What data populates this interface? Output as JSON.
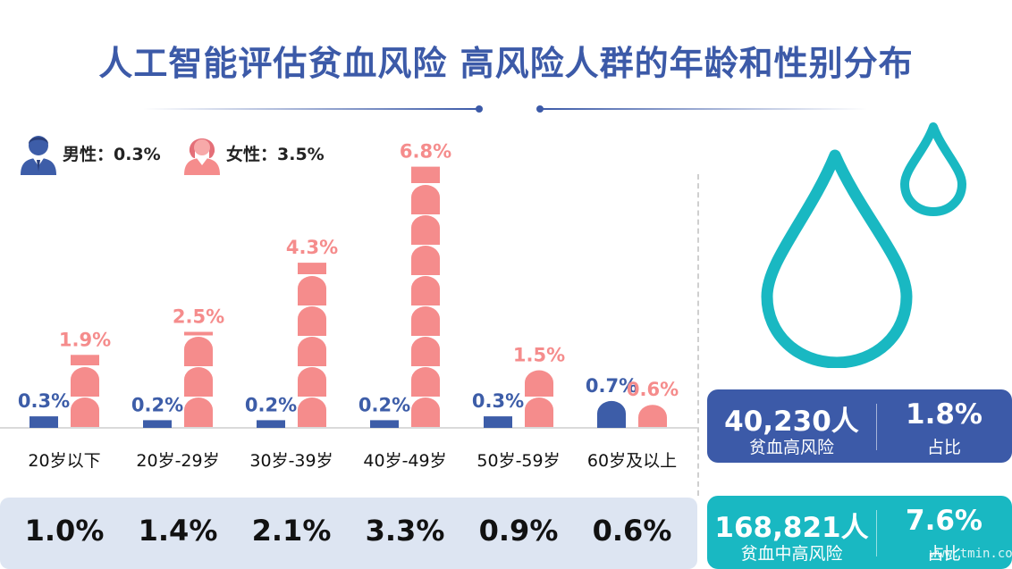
{
  "title": "人工智能评估贫血风险 高风险人群的年龄和性别分布",
  "legend": {
    "male_label": "男性：0.3%",
    "female_label": "女性：3.5%",
    "male_icon": "male-user-icon",
    "female_icon": "female-user-icon"
  },
  "colors": {
    "title": "#3c5aa8",
    "male": "#3d5da8",
    "female": "#f58c8c",
    "teal": "#19b8c2",
    "card_blue": "#3c5aa8"
  },
  "chart_data": {
    "type": "bar",
    "categories": [
      "20岁以下",
      "20岁-29岁",
      "30岁-39岁",
      "40岁-49岁",
      "50岁-59岁",
      "60岁及以上"
    ],
    "series": [
      {
        "name": "男性",
        "values": [
          0.3,
          0.2,
          0.2,
          0.2,
          0.3,
          0.7
        ],
        "labels": [
          "0.3%",
          "0.2%",
          "0.2%",
          "0.2%",
          "0.3%",
          "0.7%"
        ]
      },
      {
        "name": "女性",
        "values": [
          1.9,
          2.5,
          4.3,
          6.8,
          1.5,
          0.6
        ],
        "labels": [
          "1.9%",
          "2.5%",
          "4.3%",
          "6.8%",
          "1.5%",
          "0.6%"
        ]
      }
    ],
    "ylim": [
      0,
      7
    ],
    "totals": [
      "1.0%",
      "1.4%",
      "2.1%",
      "3.3%",
      "0.9%",
      "0.6%"
    ]
  },
  "cards": [
    {
      "count": "40,230人",
      "count_label": "贫血高风险",
      "ratio": "1.8%",
      "ratio_label": "占比"
    },
    {
      "count": "168,821人",
      "count_label": "贫血中高风险",
      "ratio": "7.6%",
      "ratio_label": "占比"
    }
  ],
  "watermark": "www.tmin.com"
}
